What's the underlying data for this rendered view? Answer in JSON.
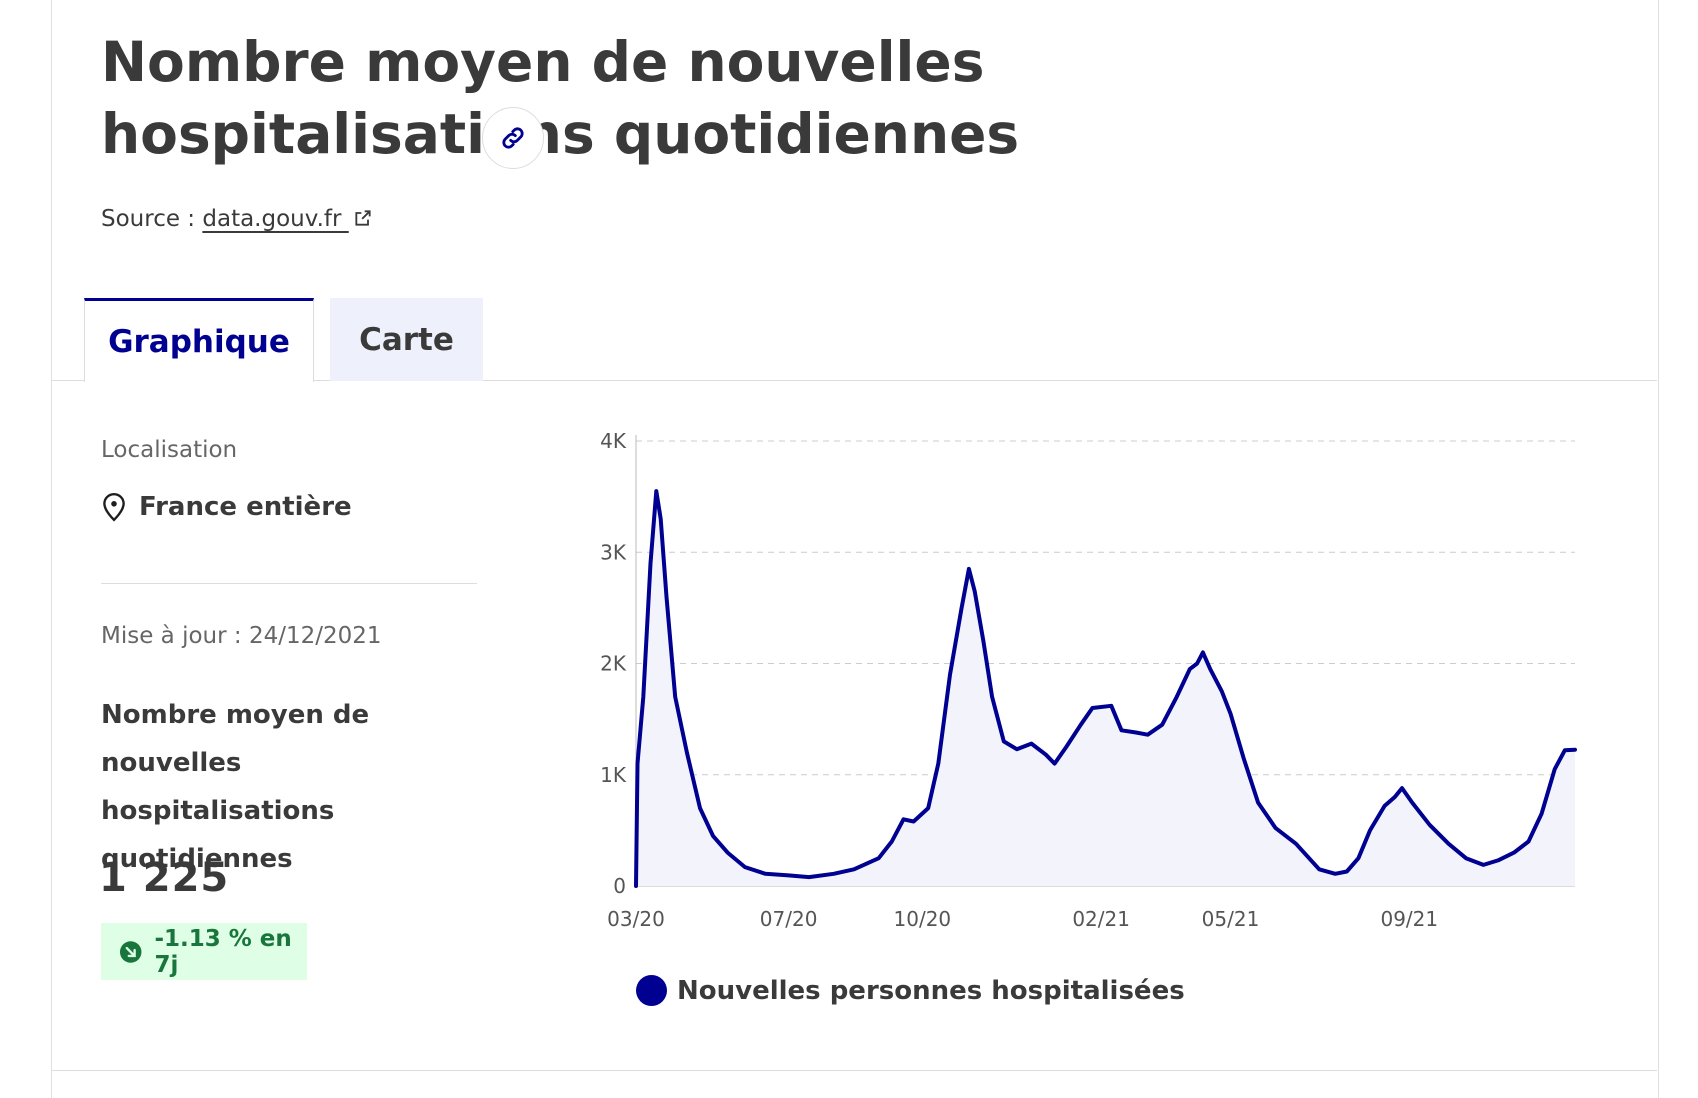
{
  "header": {
    "title": "Nombre moyen de nouvelles hospitalisations quotidiennes",
    "source_label": "Source :",
    "source_link": "data.gouv.fr"
  },
  "tabs": [
    {
      "label": "Graphique",
      "active": true
    },
    {
      "label": "Carte",
      "active": false
    }
  ],
  "sidebar": {
    "location_label": "Localisation",
    "location_value": "France entière",
    "update_label": "Mise à jour : 24/12/2021",
    "metric_title": "Nombre moyen de nouvelles hospitalisations quotidiennes",
    "value": "1 225",
    "trend": "-1.13 % en 7j"
  },
  "colors": {
    "accent": "#000091",
    "trend_bg": "#dffee6",
    "trend_text": "#18753c"
  },
  "icons": [
    "link-icon",
    "external-link-icon",
    "map-pin-icon",
    "trend-down-icon"
  ],
  "chart_data": {
    "type": "area",
    "x_ticks": [
      "03/20",
      "07/20",
      "10/20",
      "02/21",
      "05/21",
      "09/21"
    ],
    "y_ticks": [
      "0",
      "1K",
      "2K",
      "3K",
      "4K"
    ],
    "ylim": [
      0,
      4000
    ],
    "xlim": [
      "2020-03-18",
      "2021-12-24"
    ],
    "grid": true,
    "legend_position": "bottom",
    "series": [
      {
        "name": "Nouvelles personnes hospitalisées",
        "points": [
          [
            "2020-03-18",
            0
          ],
          [
            "2020-03-19",
            1100
          ],
          [
            "2020-03-23",
            1700
          ],
          [
            "2020-03-28",
            2900
          ],
          [
            "2020-04-01",
            3550
          ],
          [
            "2020-04-04",
            3300
          ],
          [
            "2020-04-08",
            2600
          ],
          [
            "2020-04-14",
            1700
          ],
          [
            "2020-04-22",
            1200
          ],
          [
            "2020-05-01",
            700
          ],
          [
            "2020-05-10",
            450
          ],
          [
            "2020-05-20",
            300
          ],
          [
            "2020-06-01",
            170
          ],
          [
            "2020-06-15",
            110
          ],
          [
            "2020-07-01",
            95
          ],
          [
            "2020-07-15",
            80
          ],
          [
            "2020-08-01",
            110
          ],
          [
            "2020-08-15",
            150
          ],
          [
            "2020-09-01",
            250
          ],
          [
            "2020-09-10",
            400
          ],
          [
            "2020-09-18",
            600
          ],
          [
            "2020-09-25",
            580
          ],
          [
            "2020-10-05",
            700
          ],
          [
            "2020-10-12",
            1100
          ],
          [
            "2020-10-20",
            1900
          ],
          [
            "2020-10-28",
            2500
          ],
          [
            "2020-11-02",
            2850
          ],
          [
            "2020-11-06",
            2650
          ],
          [
            "2020-11-12",
            2200
          ],
          [
            "2020-11-18",
            1700
          ],
          [
            "2020-11-26",
            1300
          ],
          [
            "2020-12-05",
            1230
          ],
          [
            "2020-12-15",
            1280
          ],
          [
            "2020-12-25",
            1180
          ],
          [
            "2020-12-31",
            1100
          ],
          [
            "2021-01-08",
            1250
          ],
          [
            "2021-01-18",
            1450
          ],
          [
            "2021-01-26",
            1600
          ],
          [
            "2021-02-08",
            1620
          ],
          [
            "2021-02-15",
            1400
          ],
          [
            "2021-02-25",
            1380
          ],
          [
            "2021-03-05",
            1360
          ],
          [
            "2021-03-15",
            1450
          ],
          [
            "2021-03-25",
            1700
          ],
          [
            "2021-04-03",
            1950
          ],
          [
            "2021-04-08",
            2000
          ],
          [
            "2021-04-12",
            2100
          ],
          [
            "2021-04-17",
            1950
          ],
          [
            "2021-04-25",
            1750
          ],
          [
            "2021-05-01",
            1550
          ],
          [
            "2021-05-10",
            1150
          ],
          [
            "2021-05-20",
            750
          ],
          [
            "2021-06-01",
            520
          ],
          [
            "2021-06-15",
            380
          ],
          [
            "2021-07-01",
            150
          ],
          [
            "2021-07-12",
            110
          ],
          [
            "2021-07-20",
            130
          ],
          [
            "2021-07-28",
            250
          ],
          [
            "2021-08-05",
            500
          ],
          [
            "2021-08-15",
            720
          ],
          [
            "2021-08-22",
            800
          ],
          [
            "2021-08-27",
            880
          ],
          [
            "2021-09-03",
            750
          ],
          [
            "2021-09-15",
            550
          ],
          [
            "2021-09-28",
            380
          ],
          [
            "2021-10-10",
            250
          ],
          [
            "2021-10-22",
            190
          ],
          [
            "2021-11-01",
            230
          ],
          [
            "2021-11-12",
            300
          ],
          [
            "2021-11-22",
            400
          ],
          [
            "2021-12-01",
            650
          ],
          [
            "2021-12-10",
            1050
          ],
          [
            "2021-12-17",
            1220
          ],
          [
            "2021-12-24",
            1225
          ]
        ]
      }
    ]
  }
}
